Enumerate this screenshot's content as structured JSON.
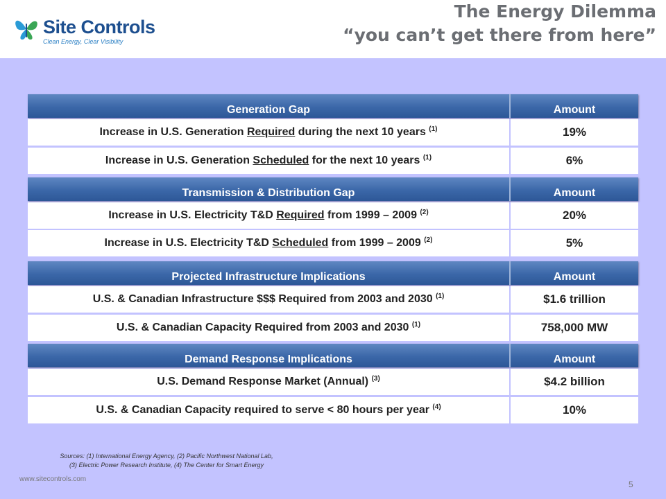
{
  "header": {
    "logo_text": "Site Controls",
    "logo_tagline": "Clean Energy, Clear Visibility",
    "title_line1": "The Energy Dilemma",
    "title_line2": "“you can’t get there from here”"
  },
  "tables": [
    {
      "heading": "Generation Gap",
      "amount_heading": "Amount",
      "rows": [
        {
          "pre": "Increase in U.S. Generation ",
          "u": "Required",
          "post": " during the next 10 years ",
          "note": "(1)",
          "value": "19%"
        },
        {
          "pre": "Increase in U.S. Generation ",
          "u": "Scheduled",
          "post": " for the next 10 years ",
          "note": "(1)",
          "value": "6%"
        }
      ]
    },
    {
      "heading": "Transmission & Distribution Gap",
      "amount_heading": "Amount",
      "rows": [
        {
          "pre": "Increase in U.S. Electricity T&D ",
          "u": "Required",
          "post": " from 1999 – 2009 ",
          "note": "(2)",
          "value": "20%"
        },
        {
          "pre": "Increase in U.S. Electricity T&D ",
          "u": "Scheduled",
          "post": " from 1999 – 2009 ",
          "note": "(2)",
          "value": "5%"
        }
      ]
    },
    {
      "heading": "Projected Infrastructure Implications",
      "amount_heading": "Amount",
      "rows": [
        {
          "pre": "U.S. & Canadian Infrastructure $$$ Required from 2003 and 2030 ",
          "u": "",
          "post": "",
          "note": "(1)",
          "value": "$1.6 trillion"
        },
        {
          "pre": "U.S. & Canadian Capacity Required from 2003 and 2030 ",
          "u": "",
          "post": "",
          "note": "(1)",
          "value": "758,000 MW"
        }
      ]
    },
    {
      "heading": "Demand Response Implications",
      "amount_heading": "Amount",
      "rows": [
        {
          "pre": "U.S. Demand Response Market (Annual) ",
          "u": "",
          "post": "",
          "note": "(3)",
          "value": "$4.2 billion"
        },
        {
          "pre": "U.S. & Canadian Capacity required to serve < 80 hours per year ",
          "u": "",
          "post": "",
          "note": "(4)",
          "value": "10%"
        }
      ]
    }
  ],
  "sources": {
    "line1": "Sources: (1) International Energy Agency, (2) Pacific Northwest National Lab,",
    "line2": "(3) Electric Power Research Institute, (4) The Center for Smart Energy"
  },
  "footer": {
    "url": "www.sitecontrols.com",
    "page_number": "5"
  },
  "colors": {
    "background": "#c3c3ff",
    "header_bar": "#3b67a8",
    "title_text": "#6b6e73",
    "logo_blue": "#1d4f8f",
    "logo_green": "#3aa655"
  }
}
